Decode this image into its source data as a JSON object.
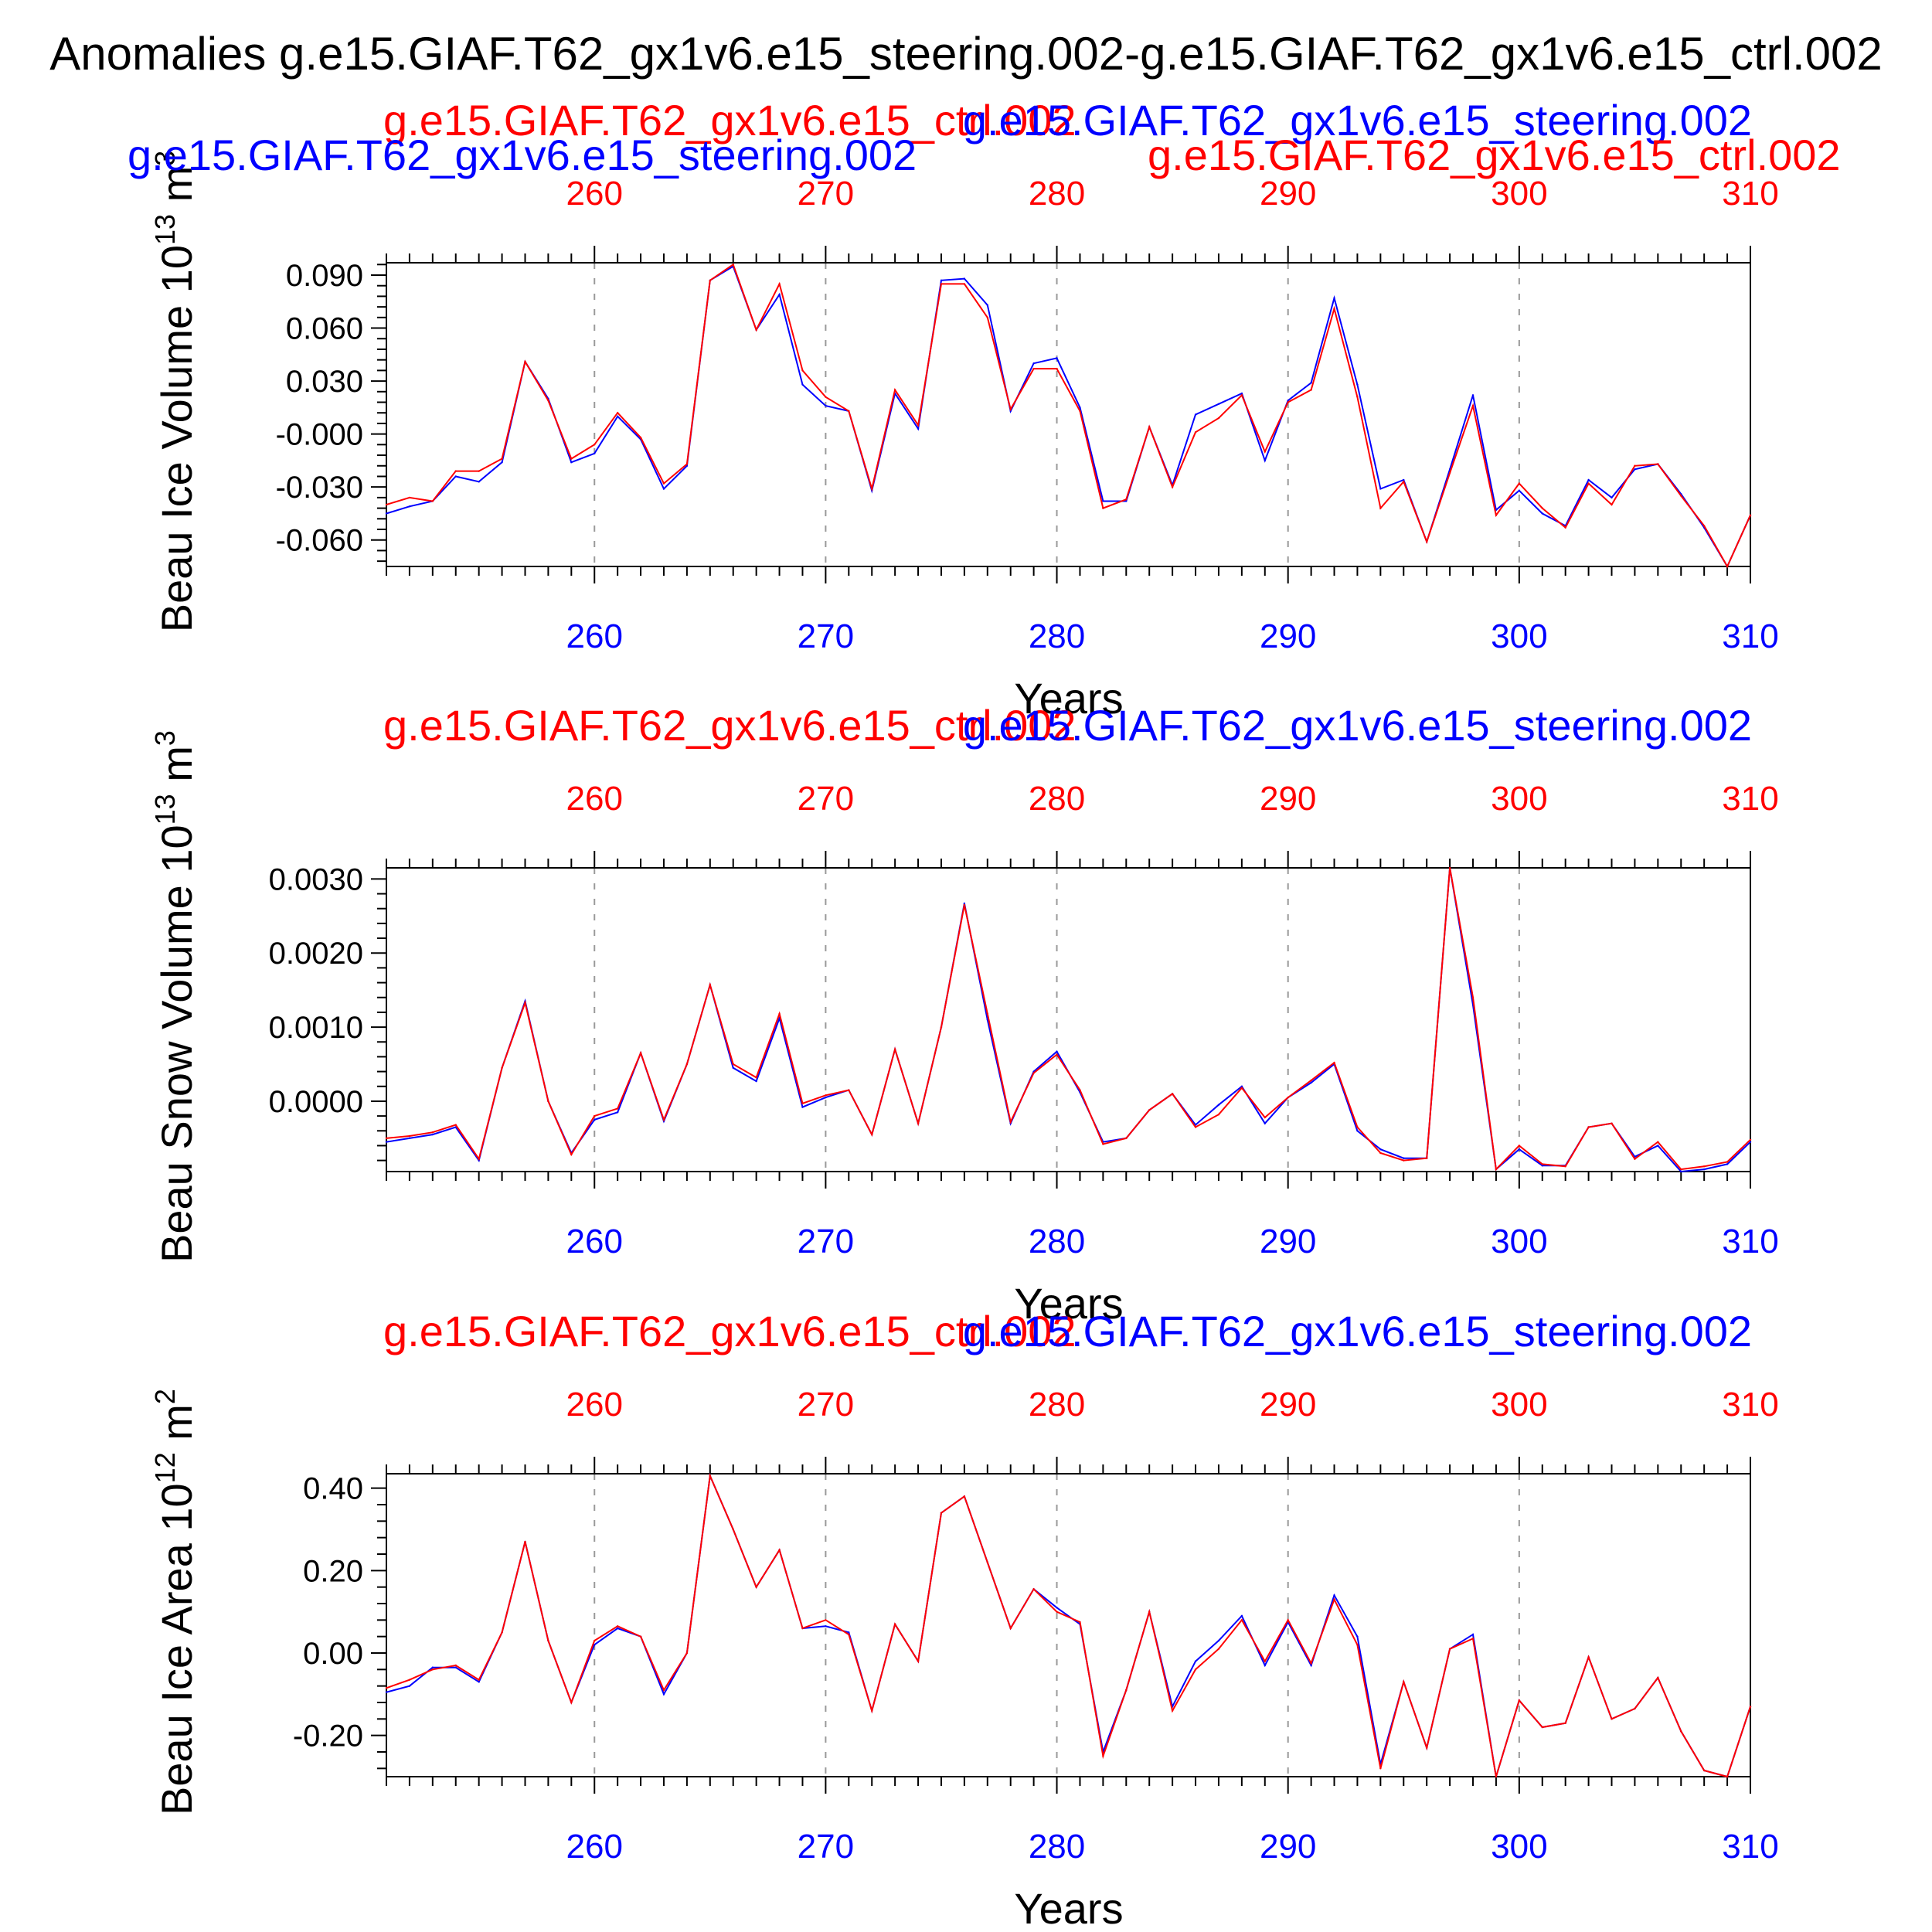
{
  "main_title": "Anomalies g.e15.GIAF.T62_gx1v6.e15_steering.002-g.e15.GIAF.T62_gx1v6.e15_ctrl.002",
  "colors": {
    "ctrl": "#ff0000",
    "steering": "#0000ff",
    "axis": "#000000",
    "grid": "#999999"
  },
  "chart_data": [
    {
      "type": "line",
      "panel_id": "ice-volume",
      "ylabel": "Beau Ice Volume 10",
      "ylabel_exp": "13",
      "ylabel_unit": "m",
      "ylabel_unit_exp": "3",
      "xlabel": "Years",
      "xlim": [
        251,
        310
      ],
      "ylim": [
        -0.075,
        0.097
      ],
      "xticks": [
        260,
        270,
        280,
        290,
        300,
        310
      ],
      "xtick_labels": [
        "260",
        "270",
        "280",
        "290",
        "300",
        "310"
      ],
      "yticks": [
        0.09,
        0.06,
        0.03,
        0.0,
        -0.03,
        -0.06
      ],
      "ytick_labels": [
        "0.090",
        "0.060",
        "0.030",
        "-0.000",
        "-0.030",
        "-0.060"
      ],
      "grid": "vertical dashed at x ticks",
      "legend": {
        "top_red": "g.e15.GIAF.T62_gx1v6.e15_ctrl.002",
        "top_blue": "g.e15.GIAF.T62_gx1v6.e15_steering.002",
        "second_blue": "g.e15.GIAF.T62_gx1v6.e15_steering.002",
        "second_red": "g.e15.GIAF.T62_gx1v6.e15_ctrl.002"
      },
      "x": [
        251,
        252,
        253,
        254,
        255,
        256,
        257,
        258,
        259,
        260,
        261,
        262,
        263,
        264,
        265,
        266,
        267,
        268,
        269,
        270,
        271,
        272,
        273,
        274,
        275,
        276,
        277,
        278,
        279,
        280,
        281,
        282,
        283,
        284,
        285,
        286,
        287,
        288,
        289,
        290,
        291,
        292,
        293,
        294,
        295,
        296,
        297,
        298,
        299,
        300,
        301,
        302,
        303,
        304,
        305,
        306,
        307,
        308,
        309,
        310
      ],
      "series": [
        {
          "name": "g.e15.GIAF.T62_gx1v6.e15_steering.002",
          "color": "#0000ff",
          "values": [
            -0.045,
            -0.041,
            -0.038,
            -0.024,
            -0.027,
            -0.016,
            0.041,
            0.02,
            -0.016,
            -0.011,
            0.01,
            -0.003,
            -0.031,
            -0.018,
            0.087,
            0.095,
            0.059,
            0.079,
            0.028,
            0.016,
            0.013,
            -0.032,
            0.023,
            0.003,
            0.087,
            0.088,
            0.073,
            0.013,
            0.04,
            0.043,
            0.015,
            -0.038,
            -0.038,
            0.004,
            -0.029,
            0.011,
            0.017,
            0.023,
            -0.015,
            0.019,
            0.029,
            0.077,
            0.028,
            -0.031,
            -0.026,
            -0.061,
            -0.02,
            0.022,
            -0.043,
            -0.032,
            -0.045,
            -0.052,
            -0.026,
            -0.036,
            -0.02,
            -0.017,
            -0.034,
            -0.053,
            -0.075,
            -0.046
          ]
        },
        {
          "name": "g.e15.GIAF.T62_gx1v6.e15_ctrl.002",
          "color": "#ff0000",
          "values": [
            -0.04,
            -0.036,
            -0.038,
            -0.021,
            -0.021,
            -0.014,
            0.041,
            0.019,
            -0.014,
            -0.006,
            0.012,
            -0.002,
            -0.028,
            -0.017,
            0.087,
            0.096,
            0.059,
            0.085,
            0.036,
            0.021,
            0.013,
            -0.031,
            0.025,
            0.005,
            0.085,
            0.085,
            0.066,
            0.014,
            0.037,
            0.037,
            0.013,
            -0.042,
            -0.037,
            0.004,
            -0.03,
            0.001,
            0.009,
            0.022,
            -0.01,
            0.018,
            0.025,
            0.071,
            0.021,
            -0.042,
            -0.027,
            -0.061,
            -0.022,
            0.016,
            -0.046,
            -0.028,
            -0.042,
            -0.053,
            -0.028,
            -0.04,
            -0.018,
            -0.017,
            -0.035,
            -0.052,
            -0.075,
            -0.046
          ]
        }
      ]
    },
    {
      "type": "line",
      "panel_id": "snow-volume",
      "ylabel": "Beau Snow Volume 10",
      "ylabel_exp": "13",
      "ylabel_unit": "m",
      "ylabel_unit_exp": "3",
      "xlabel": "Years",
      "xlim": [
        251,
        310
      ],
      "ylim": [
        -0.00095,
        0.00315
      ],
      "xticks": [
        260,
        270,
        280,
        290,
        300,
        310
      ],
      "xtick_labels": [
        "260",
        "270",
        "280",
        "290",
        "300",
        "310"
      ],
      "yticks": [
        0.003,
        0.002,
        0.001,
        0.0
      ],
      "ytick_labels": [
        "0.0030",
        "0.0020",
        "0.0010",
        "0.0000"
      ],
      "grid": "vertical dashed at x ticks",
      "legend": {
        "top_red": "g.e15.GIAF.T62_gx1v6.e15_ctrl.002",
        "top_blue": "g.e15.GIAF.T62_gx1v6.e15_steering.002"
      },
      "x": [
        251,
        252,
        253,
        254,
        255,
        256,
        257,
        258,
        259,
        260,
        261,
        262,
        263,
        264,
        265,
        266,
        267,
        268,
        269,
        270,
        271,
        272,
        273,
        274,
        275,
        276,
        277,
        278,
        279,
        280,
        281,
        282,
        283,
        284,
        285,
        286,
        287,
        288,
        289,
        290,
        291,
        292,
        293,
        294,
        295,
        296,
        297,
        298,
        299,
        300,
        301,
        302,
        303,
        304,
        305,
        306,
        307,
        308,
        309,
        310
      ],
      "series": [
        {
          "name": "g.e15.GIAF.T62_gx1v6.e15_steering.002",
          "color": "#0000ff",
          "values": [
            -0.00055,
            -0.0005,
            -0.00045,
            -0.00035,
            -0.0008,
            0.00045,
            0.00135,
            0.0,
            -0.0007,
            -0.00025,
            -0.00015,
            0.00065,
            -0.00027,
            0.0005,
            0.00157,
            0.00045,
            0.00027,
            0.00112,
            -8e-05,
            5e-05,
            0.00015,
            -0.00045,
            0.0007,
            -0.0003,
            0.001,
            0.00267,
            0.0011,
            -0.0003,
            0.0004,
            0.00067,
            0.00012,
            -0.00055,
            -0.0005,
            -0.00012,
            0.0001,
            -0.00032,
            -5e-05,
            0.0002,
            -0.0003,
            5e-05,
            0.00025,
            0.0005,
            -0.0004,
            -0.00065,
            -0.00077,
            -0.00077,
            0.00315,
            0.0013,
            -0.00092,
            -0.00065,
            -0.00087,
            -0.00087,
            -0.00035,
            -0.0003,
            -0.00075,
            -0.0006,
            -0.00095,
            -0.00092,
            -0.00085,
            -0.00055
          ]
        },
        {
          "name": "g.e15.GIAF.T62_gx1v6.e15_ctrl.002",
          "color": "#ff0000",
          "values": [
            -0.0005,
            -0.00047,
            -0.00042,
            -0.00032,
            -0.00078,
            0.00045,
            0.00133,
            0.0,
            -0.00072,
            -0.0002,
            -0.0001,
            0.00065,
            -0.00025,
            0.0005,
            0.00157,
            0.0005,
            0.00032,
            0.00118,
            -3e-05,
            8e-05,
            0.00015,
            -0.00045,
            0.0007,
            -0.0003,
            0.001,
            0.00265,
            0.00118,
            -0.00028,
            0.00038,
            0.00063,
            0.00015,
            -0.00058,
            -0.0005,
            -0.00012,
            0.0001,
            -0.00035,
            -0.00018,
            0.00018,
            -0.00022,
            5e-05,
            0.00028,
            0.00052,
            -0.00035,
            -0.0007,
            -0.0008,
            -0.00077,
            0.00315,
            0.0014,
            -0.00092,
            -0.0006,
            -0.00085,
            -0.00088,
            -0.00035,
            -0.0003,
            -0.00078,
            -0.00055,
            -0.00092,
            -0.00088,
            -0.00082,
            -0.00052
          ]
        }
      ]
    },
    {
      "type": "line",
      "panel_id": "ice-area",
      "ylabel": "Beau Ice Area 10",
      "ylabel_exp": "12",
      "ylabel_unit": "m",
      "ylabel_unit_exp": "2",
      "xlabel": "Years",
      "xlim": [
        251,
        310
      ],
      "ylim": [
        -0.3,
        0.435
      ],
      "xticks": [
        260,
        270,
        280,
        290,
        300,
        310
      ],
      "xtick_labels": [
        "260",
        "270",
        "280",
        "290",
        "300",
        "310"
      ],
      "yticks": [
        0.4,
        0.2,
        0.0,
        -0.2
      ],
      "ytick_labels": [
        "0.40",
        "0.20",
        "0.00",
        "-0.20"
      ],
      "grid": "vertical dashed at x ticks",
      "legend": {
        "top_red": "g.e15.GIAF.T62_gx1v6.e15_ctrl.002",
        "top_blue": "g.e15.GIAF.T62_gx1v6.e15_steering.002"
      },
      "x": [
        251,
        252,
        253,
        254,
        255,
        256,
        257,
        258,
        259,
        260,
        261,
        262,
        263,
        264,
        265,
        266,
        267,
        268,
        269,
        270,
        271,
        272,
        273,
        274,
        275,
        276,
        277,
        278,
        279,
        280,
        281,
        282,
        283,
        284,
        285,
        286,
        287,
        288,
        289,
        290,
        291,
        292,
        293,
        294,
        295,
        296,
        297,
        298,
        299,
        300,
        301,
        302,
        303,
        304,
        305,
        306,
        307,
        308,
        309,
        310
      ],
      "series": [
        {
          "name": "g.e15.GIAF.T62_gx1v6.e15_steering.002",
          "color": "#0000ff",
          "values": [
            -0.095,
            -0.08,
            -0.035,
            -0.035,
            -0.07,
            0.05,
            0.27,
            0.03,
            -0.12,
            0.02,
            0.06,
            0.04,
            -0.1,
            0.0,
            0.43,
            0.3,
            0.16,
            0.25,
            0.06,
            0.065,
            0.05,
            -0.14,
            0.07,
            -0.02,
            0.34,
            0.38,
            0.22,
            0.06,
            0.155,
            0.11,
            0.07,
            -0.24,
            -0.09,
            0.1,
            -0.13,
            -0.02,
            0.03,
            0.09,
            -0.03,
            0.075,
            -0.03,
            0.14,
            0.04,
            -0.27,
            -0.07,
            -0.23,
            0.01,
            0.045,
            -0.3,
            -0.115,
            -0.18,
            -0.17,
            -0.01,
            -0.16,
            -0.135,
            -0.06,
            -0.19,
            -0.285,
            -0.3,
            -0.13
          ]
        },
        {
          "name": "g.e15.GIAF.T62_gx1v6.e15_ctrl.002",
          "color": "#ff0000",
          "values": [
            -0.085,
            -0.065,
            -0.04,
            -0.03,
            -0.065,
            0.05,
            0.27,
            0.03,
            -0.12,
            0.03,
            0.065,
            0.04,
            -0.09,
            0.0,
            0.43,
            0.3,
            0.16,
            0.25,
            0.06,
            0.08,
            0.045,
            -0.14,
            0.07,
            -0.02,
            0.34,
            0.38,
            0.22,
            0.06,
            0.155,
            0.1,
            0.075,
            -0.25,
            -0.09,
            0.1,
            -0.14,
            -0.04,
            0.01,
            0.08,
            -0.02,
            0.08,
            -0.025,
            0.13,
            0.02,
            -0.28,
            -0.07,
            -0.23,
            0.01,
            0.035,
            -0.3,
            -0.115,
            -0.18,
            -0.17,
            -0.01,
            -0.16,
            -0.135,
            -0.06,
            -0.19,
            -0.285,
            -0.3,
            -0.13
          ]
        }
      ]
    }
  ]
}
